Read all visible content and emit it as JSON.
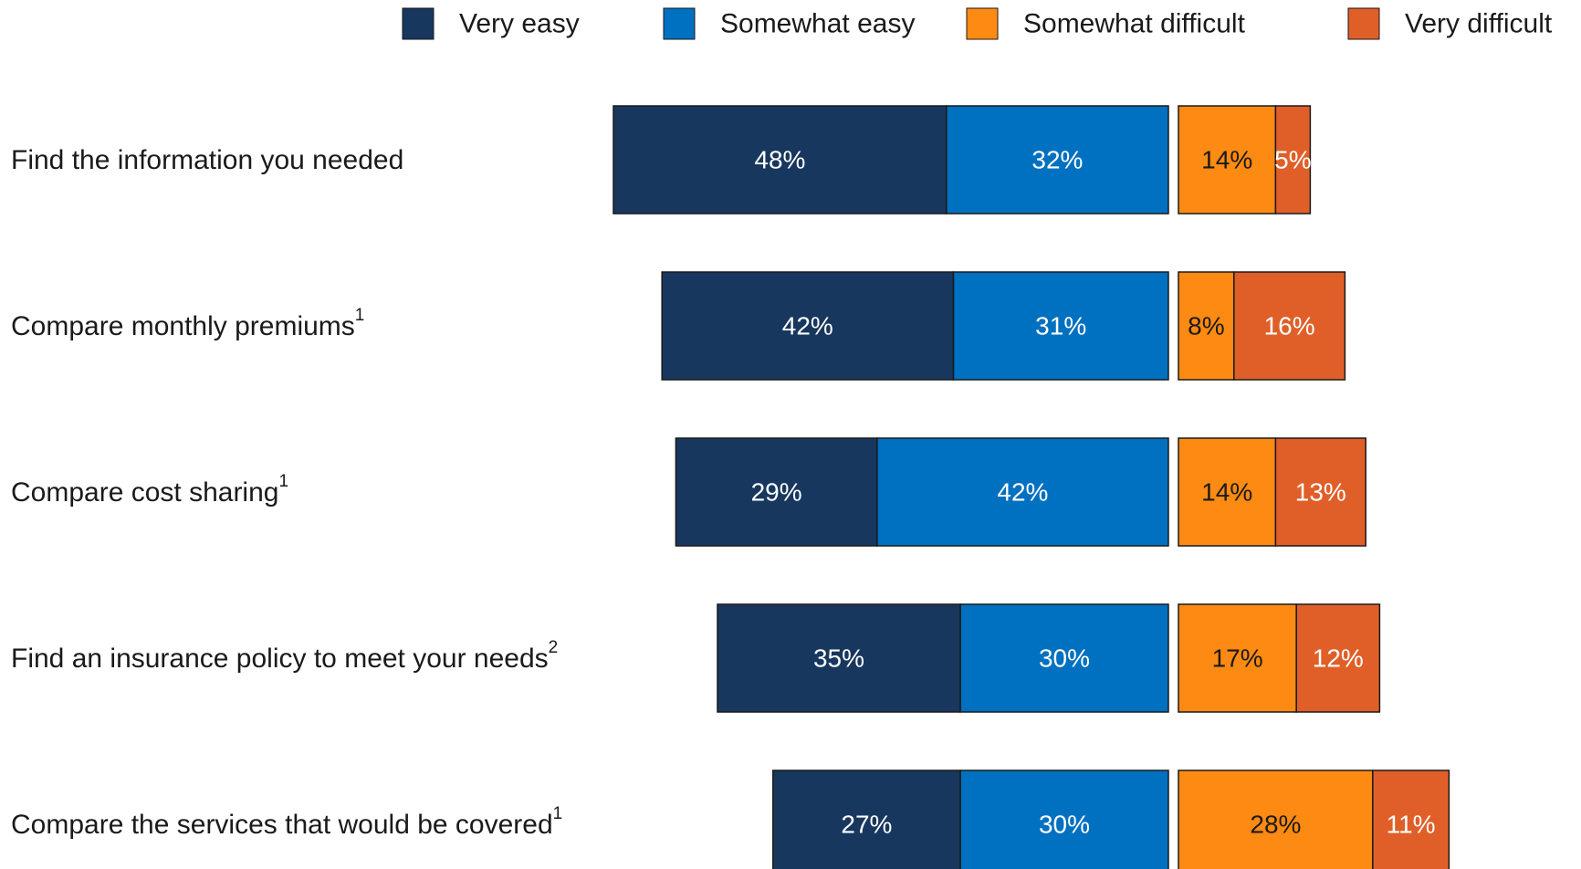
{
  "chart_data": {
    "type": "bar",
    "orientation": "horizontal",
    "stacked": true,
    "diverging": true,
    "title": "",
    "xlabel": "",
    "ylabel": "",
    "grid": false,
    "legend_position": "top-right",
    "categories": [
      {
        "label": "Find the information you needed",
        "footnote": ""
      },
      {
        "label": "Compare monthly premiums",
        "footnote": "1"
      },
      {
        "label": "Compare cost sharing",
        "footnote": "1"
      },
      {
        "label": "Find an insurance policy to meet your needs",
        "footnote": "2"
      },
      {
        "label": "Compare the services that would be covered",
        "footnote": "1"
      }
    ],
    "series": [
      {
        "name": "Very easy",
        "color": "#17375e",
        "label_color": "#ffffff",
        "side": "easy",
        "values": [
          48,
          42,
          29,
          35,
          27
        ],
        "labels": [
          "48%",
          "42%",
          "29%",
          "35%",
          "27%"
        ]
      },
      {
        "name": "Somewhat easy",
        "color": "#0070c0",
        "label_color": "#ffffff",
        "side": "easy",
        "values": [
          32,
          31,
          42,
          30,
          30
        ],
        "labels": [
          "32%",
          "31%",
          "42%",
          "30%",
          "30%"
        ]
      },
      {
        "name": "Somewhat difficult",
        "color": "#fd8a12",
        "label_color": "#1a1a1a",
        "side": "difficult",
        "values": [
          14,
          8,
          14,
          17,
          28
        ],
        "labels": [
          "14%",
          "8%",
          "14%",
          "17%",
          "28%"
        ]
      },
      {
        "name": "Very difficult",
        "color": "#e05f28",
        "label_color": "#ffffff",
        "side": "difficult",
        "values": [
          5,
          16,
          13,
          12,
          11
        ],
        "labels": [
          "5%",
          "16%",
          "13%",
          "12%",
          "11%"
        ]
      }
    ]
  }
}
